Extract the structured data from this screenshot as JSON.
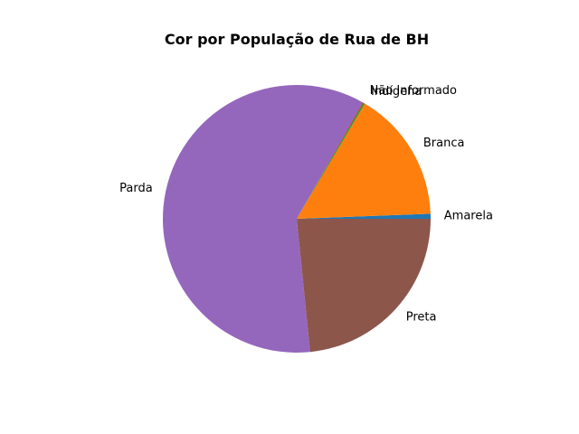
{
  "chart_data": {
    "type": "pie",
    "title": "Cor por População de Rua de BH",
    "start_angle_deg": 0,
    "direction": "counterclockwise",
    "labels": [
      "Amarela",
      "Branca",
      "Indígena",
      "Não Informado",
      "Parda",
      "Preta"
    ],
    "values": [
      0.6,
      15.9,
      0.2,
      0.1,
      59.8,
      23.4
    ],
    "colors": [
      "#1f77b4",
      "#ff7f0e",
      "#2ca02c",
      "#d62728",
      "#9467bd",
      "#8c564b"
    ],
    "legend": "none",
    "slice_labels": "outside"
  }
}
